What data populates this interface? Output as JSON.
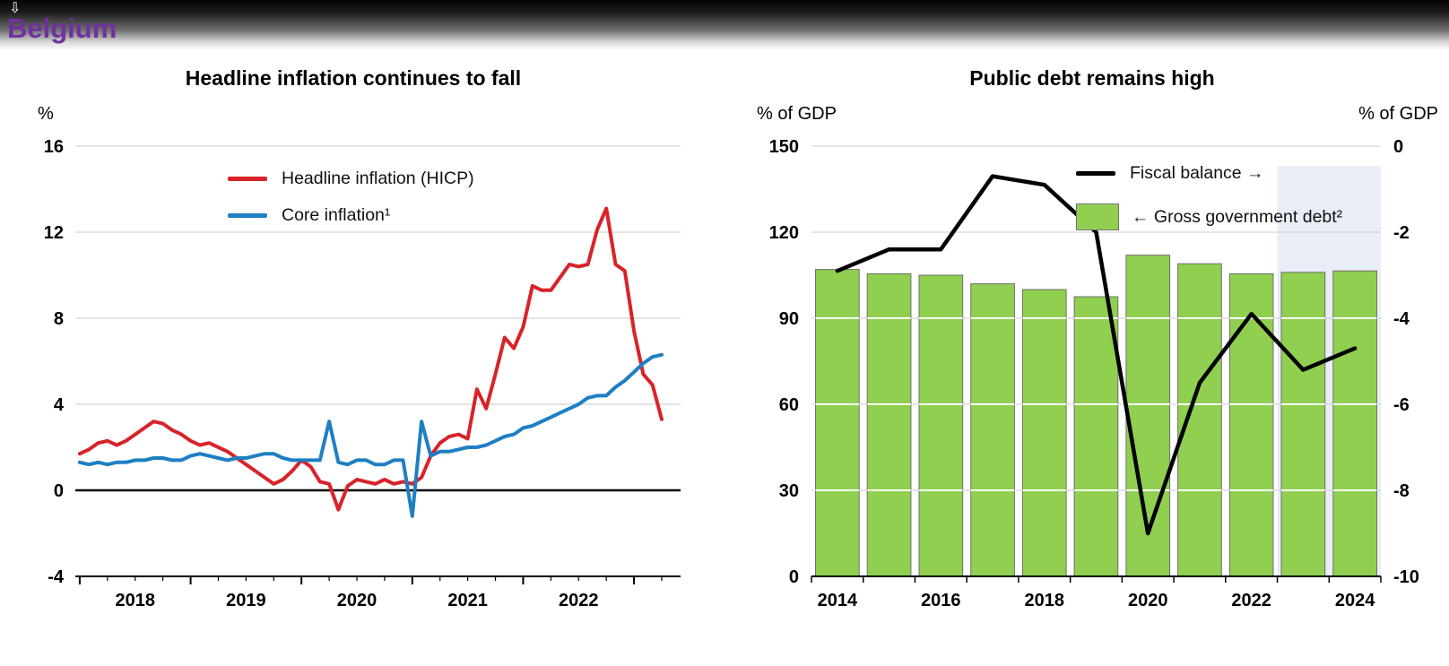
{
  "header": {
    "title": "Belgium",
    "brand_color": "#7030a0"
  },
  "icons": {
    "cursor_glyph": "⇩"
  },
  "chart_data": [
    {
      "type": "line",
      "title": "Headline inflation continues to fall",
      "ylabel": "%",
      "ylim": [
        -4,
        16
      ],
      "yticks": [
        16,
        12,
        8,
        4,
        0,
        -4
      ],
      "xlim": [
        2017.96,
        2023.42
      ],
      "x_start": 2018.0,
      "x_step": 0.0833333,
      "xtick_labels": [
        "2018",
        "2019",
        "2020",
        "2021",
        "2022"
      ],
      "xtick_positions": [
        2018.5,
        2019.5,
        2020.5,
        2021.5,
        2022.5
      ],
      "grid": "horizontal",
      "legend_position": "top-left-inside",
      "series": [
        {
          "name": "Headline inflation (HICP)",
          "color": "#d8232a",
          "values": [
            1.7,
            1.9,
            2.2,
            2.3,
            2.1,
            2.3,
            2.6,
            2.9,
            3.2,
            3.1,
            2.8,
            2.6,
            2.3,
            2.1,
            2.2,
            2.0,
            1.8,
            1.5,
            1.2,
            0.9,
            0.6,
            0.3,
            0.5,
            0.9,
            1.4,
            1.1,
            0.4,
            0.3,
            -0.9,
            0.2,
            0.5,
            0.4,
            0.3,
            0.5,
            0.3,
            0.4,
            0.3,
            0.6,
            1.6,
            2.2,
            2.5,
            2.6,
            2.4,
            4.7,
            3.8,
            5.4,
            7.1,
            6.6,
            7.6,
            9.5,
            9.3,
            9.3,
            9.9,
            10.5,
            10.4,
            10.5,
            12.1,
            13.1,
            10.5,
            10.2,
            7.4,
            5.4,
            4.9,
            3.3
          ]
        },
        {
          "name": "Core inflation¹",
          "color": "#1e7fc2",
          "values": [
            1.3,
            1.2,
            1.3,
            1.2,
            1.3,
            1.3,
            1.4,
            1.4,
            1.5,
            1.5,
            1.4,
            1.4,
            1.6,
            1.7,
            1.6,
            1.5,
            1.4,
            1.5,
            1.5,
            1.6,
            1.7,
            1.7,
            1.5,
            1.4,
            1.4,
            1.4,
            1.4,
            3.2,
            1.3,
            1.2,
            1.4,
            1.4,
            1.2,
            1.2,
            1.4,
            1.4,
            -1.2,
            3.2,
            1.6,
            1.8,
            1.8,
            1.9,
            2.0,
            2.0,
            2.1,
            2.3,
            2.5,
            2.6,
            2.9,
            3.0,
            3.2,
            3.4,
            3.6,
            3.8,
            4.0,
            4.3,
            4.4,
            4.4,
            4.8,
            5.1,
            5.5,
            5.9,
            6.2,
            6.3
          ]
        }
      ]
    },
    {
      "type": "bar+line",
      "title": "Public debt remains high",
      "ylabel_left": "% of GDP",
      "ylabel_right": "% of GDP",
      "ylim_left": [
        0,
        150
      ],
      "yticks_left": [
        150,
        120,
        90,
        60,
        30,
        0
      ],
      "ylim_right": [
        -10,
        0
      ],
      "yticks_right": [
        0,
        -2,
        -4,
        -6,
        -8,
        -10
      ],
      "categories": [
        2014,
        2015,
        2016,
        2017,
        2018,
        2019,
        2020,
        2021,
        2022,
        2023,
        2024
      ],
      "xtick_labels": [
        "2014",
        "2016",
        "2018",
        "2020",
        "2022",
        "2024"
      ],
      "forecast_years": [
        2023,
        2024
      ],
      "forecast_color": "#e9edf6",
      "bars": {
        "name": "← Gross government debt²",
        "color": "#90cf4f",
        "values": [
          107,
          105.5,
          105,
          102,
          100,
          97.5,
          112,
          109,
          105.5,
          106,
          106.5
        ]
      },
      "line": {
        "name": "Fiscal balance →",
        "color": "#000000",
        "values": [
          -2.9,
          -2.4,
          -2.4,
          -0.7,
          -0.9,
          -2.0,
          -9.0,
          -5.5,
          -3.9,
          -5.2,
          -4.7
        ]
      }
    }
  ]
}
